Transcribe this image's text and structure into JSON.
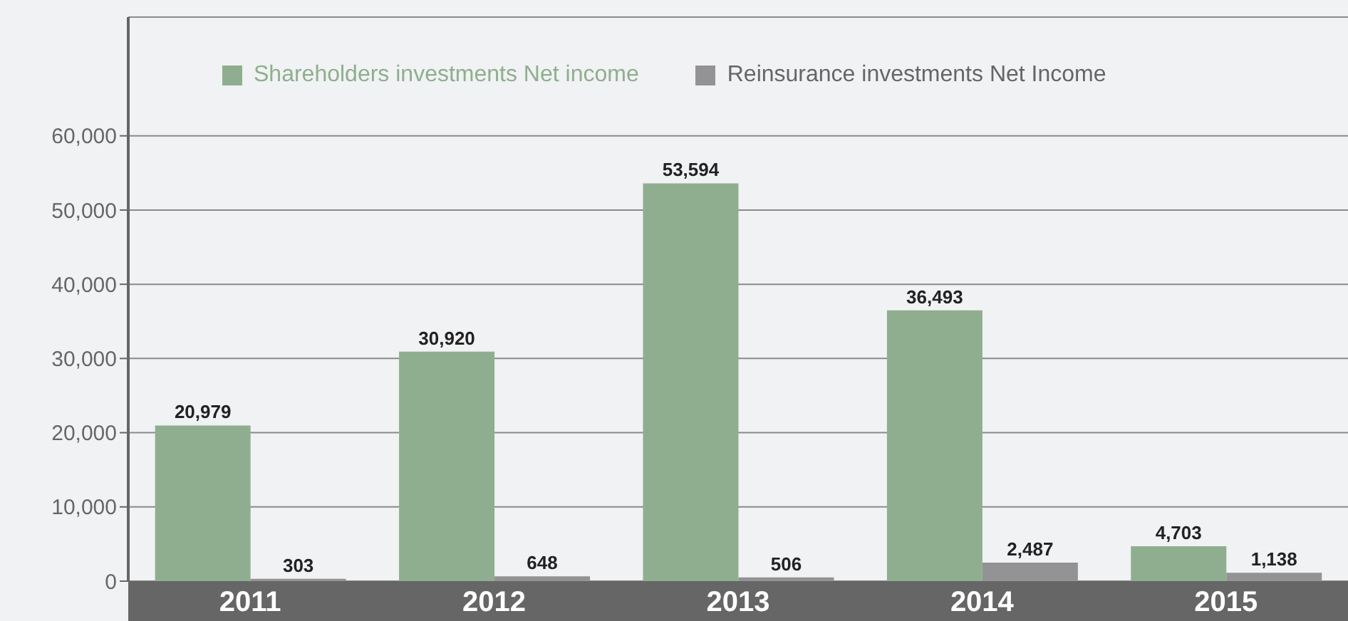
{
  "chart_data": {
    "type": "bar",
    "categories": [
      "2011",
      "2012",
      "2013",
      "2014",
      "2015"
    ],
    "series": [
      {
        "name": "Shareholders investments Net income",
        "color": "#8fae8f",
        "values": [
          20979,
          30920,
          53594,
          36493,
          4703
        ],
        "value_labels": [
          "20,979",
          "30,920",
          "53,594",
          "36,493",
          "4,703"
        ]
      },
      {
        "name": "Reinsurance investments Net Income",
        "color": "#939396",
        "values": [
          303,
          648,
          506,
          2487,
          1138
        ],
        "value_labels": [
          "303",
          "648",
          "506",
          "2,487",
          "1,138"
        ]
      }
    ],
    "ylim": [
      0,
      76000
    ],
    "yticks": [
      0,
      {
        "value": 10000,
        "label": "10,000"
      },
      {
        "value": 20000,
        "label": "20,000"
      },
      {
        "value": 30000,
        "label": "30,000"
      },
      {
        "value": 40000,
        "label": "40,000"
      },
      {
        "value": 50000,
        "label": "50,000"
      },
      {
        "value": 60000,
        "label": "60,000"
      }
    ],
    "grid": "y",
    "legend": "top"
  }
}
